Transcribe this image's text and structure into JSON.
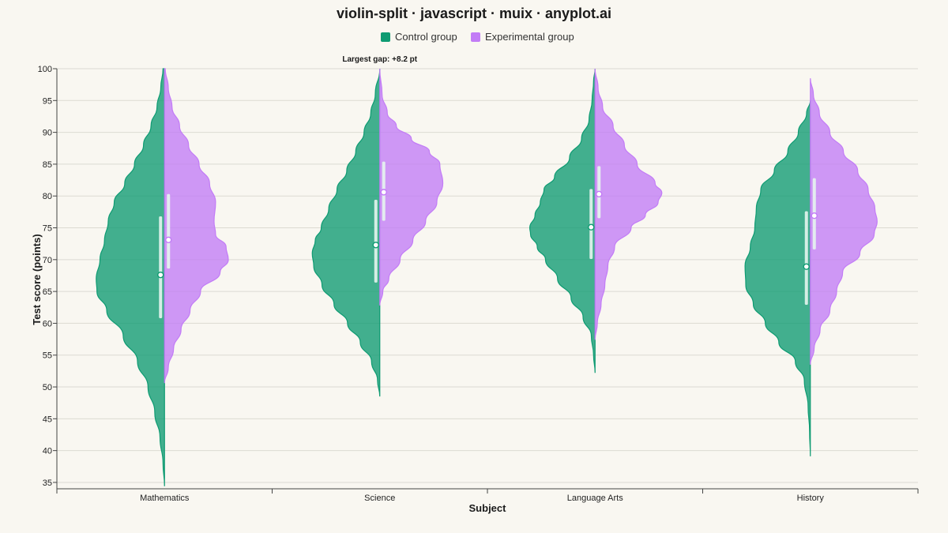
{
  "colors": {
    "control": "#0e9b72",
    "experimental": "#c27cf6",
    "grid": "#dcdad2",
    "axis": "#444444",
    "box": "#e6f5ee",
    "background": "#f9f7f1"
  },
  "chart_data": {
    "type": "violin-split",
    "title": "violin-split · javascript · muix · anyplot.ai",
    "xlabel": "Subject",
    "ylabel": "Test score (points)",
    "ylim": [
      34,
      100
    ],
    "yticks": [
      35,
      40,
      45,
      50,
      55,
      60,
      65,
      70,
      75,
      80,
      85,
      90,
      95,
      100
    ],
    "grid": true,
    "legend_position": "top-center",
    "categories": [
      "Mathematics",
      "Science",
      "Language Arts",
      "History"
    ],
    "series": [
      {
        "name": "Control group",
        "color": "#0e9b72",
        "side": "left",
        "distributions": [
          {
            "category": "Mathematics",
            "min": 34.4,
            "max": 100,
            "median": 67.6,
            "q1": 60.8,
            "q3": 76.8,
            "profile": [
              [
                34.4,
                0
              ],
              [
                38,
                0.02
              ],
              [
                42,
                0.06
              ],
              [
                46,
                0.13
              ],
              [
                50,
                0.22
              ],
              [
                54,
                0.36
              ],
              [
                58,
                0.55
              ],
              [
                62,
                0.77
              ],
              [
                65,
                0.9
              ],
              [
                67,
                0.91
              ],
              [
                70,
                0.86
              ],
              [
                73,
                0.8
              ],
              [
                76,
                0.75
              ],
              [
                79,
                0.67
              ],
              [
                82,
                0.53
              ],
              [
                85,
                0.4
              ],
              [
                88,
                0.28
              ],
              [
                91,
                0.18
              ],
              [
                94,
                0.1
              ],
              [
                97,
                0.05
              ],
              [
                100,
                0.02
              ]
            ]
          },
          {
            "category": "Science",
            "min": 48.5,
            "max": 100,
            "median": 72.3,
            "q1": 66.4,
            "q3": 79.4,
            "profile": [
              [
                48.5,
                0
              ],
              [
                51,
                0.03
              ],
              [
                54,
                0.11
              ],
              [
                57,
                0.26
              ],
              [
                60,
                0.43
              ],
              [
                63,
                0.61
              ],
              [
                66,
                0.77
              ],
              [
                69,
                0.88
              ],
              [
                71,
                0.9
              ],
              [
                73,
                0.86
              ],
              [
                75,
                0.78
              ],
              [
                78,
                0.68
              ],
              [
                81,
                0.57
              ],
              [
                84,
                0.44
              ],
              [
                87,
                0.32
              ],
              [
                90,
                0.21
              ],
              [
                93,
                0.12
              ],
              [
                96,
                0.06
              ],
              [
                100,
                0
              ]
            ]
          },
          {
            "category": "Language Arts",
            "min": 52.2,
            "max": 100,
            "median": 75.1,
            "q1": 70.1,
            "q3": 81.1,
            "profile": [
              [
                52.2,
                0
              ],
              [
                55,
                0.02
              ],
              [
                58,
                0.05
              ],
              [
                61,
                0.16
              ],
              [
                64,
                0.32
              ],
              [
                67,
                0.5
              ],
              [
                70,
                0.66
              ],
              [
                72,
                0.77
              ],
              [
                74,
                0.86
              ],
              [
                75,
                0.87
              ],
              [
                77,
                0.8
              ],
              [
                79,
                0.73
              ],
              [
                81,
                0.68
              ],
              [
                83,
                0.54
              ],
              [
                86,
                0.34
              ],
              [
                89,
                0.18
              ],
              [
                92,
                0.08
              ],
              [
                95,
                0.04
              ],
              [
                98,
                0.02
              ],
              [
                100,
                0
              ]
            ]
          },
          {
            "category": "History",
            "min": 39.1,
            "max": 95,
            "median": 68.9,
            "q1": 62.9,
            "q3": 77.6,
            "profile": [
              [
                39.1,
                0
              ],
              [
                43,
                0.01
              ],
              [
                47,
                0.03
              ],
              [
                51,
                0.08
              ],
              [
                54,
                0.2
              ],
              [
                57,
                0.42
              ],
              [
                60,
                0.6
              ],
              [
                63,
                0.76
              ],
              [
                66,
                0.86
              ],
              [
                69,
                0.87
              ],
              [
                72,
                0.8
              ],
              [
                75,
                0.74
              ],
              [
                78,
                0.72
              ],
              [
                81,
                0.66
              ],
              [
                84,
                0.48
              ],
              [
                87,
                0.3
              ],
              [
                90,
                0.16
              ],
              [
                93,
                0.05
              ],
              [
                95,
                0
              ]
            ]
          }
        ]
      },
      {
        "name": "Experimental group",
        "color": "#c27cf6",
        "side": "right",
        "distributions": [
          {
            "category": "Mathematics",
            "min": 50.6,
            "max": 100,
            "median": 73.1,
            "q1": 68.6,
            "q3": 80.3,
            "profile": [
              [
                50.6,
                0
              ],
              [
                53,
                0.05
              ],
              [
                56,
                0.12
              ],
              [
                59,
                0.22
              ],
              [
                62,
                0.34
              ],
              [
                65,
                0.48
              ],
              [
                68,
                0.74
              ],
              [
                70,
                0.85
              ],
              [
                72,
                0.82
              ],
              [
                74,
                0.68
              ],
              [
                76,
                0.66
              ],
              [
                79,
                0.68
              ],
              [
                82,
                0.6
              ],
              [
                85,
                0.46
              ],
              [
                88,
                0.32
              ],
              [
                91,
                0.2
              ],
              [
                94,
                0.1
              ],
              [
                97,
                0.05
              ],
              [
                100,
                0.01
              ]
            ]
          },
          {
            "category": "Science",
            "min": 62.8,
            "max": 100,
            "median": 80.6,
            "q1": 76.1,
            "q3": 85.4,
            "profile": [
              [
                62.8,
                0
              ],
              [
                65,
                0.04
              ],
              [
                67,
                0.12
              ],
              [
                70,
                0.27
              ],
              [
                73,
                0.44
              ],
              [
                76,
                0.61
              ],
              [
                79,
                0.76
              ],
              [
                82,
                0.84
              ],
              [
                85,
                0.8
              ],
              [
                87,
                0.66
              ],
              [
                89,
                0.42
              ],
              [
                91,
                0.22
              ],
              [
                93,
                0.1
              ],
              [
                96,
                0.03
              ],
              [
                100,
                0
              ]
            ]
          },
          {
            "category": "Language Arts",
            "min": 57.4,
            "max": 100,
            "median": 80.3,
            "q1": 76.5,
            "q3": 84.7,
            "profile": [
              [
                57.4,
                0
              ],
              [
                60,
                0.03
              ],
              [
                63,
                0.08
              ],
              [
                66,
                0.13
              ],
              [
                69,
                0.17
              ],
              [
                72,
                0.26
              ],
              [
                75,
                0.48
              ],
              [
                77,
                0.67
              ],
              [
                79,
                0.84
              ],
              [
                80.5,
                0.89
              ],
              [
                82,
                0.8
              ],
              [
                85,
                0.56
              ],
              [
                88,
                0.39
              ],
              [
                91,
                0.24
              ],
              [
                94,
                0.1
              ],
              [
                97,
                0.04
              ],
              [
                100,
                0
              ]
            ]
          },
          {
            "category": "History",
            "min": 53.5,
            "max": 98.5,
            "median": 76.9,
            "q1": 71.6,
            "q3": 82.8,
            "profile": [
              [
                53.5,
                0
              ],
              [
                56,
                0.05
              ],
              [
                59,
                0.13
              ],
              [
                62,
                0.26
              ],
              [
                65,
                0.35
              ],
              [
                68,
                0.43
              ],
              [
                71,
                0.66
              ],
              [
                74,
                0.85
              ],
              [
                76,
                0.89
              ],
              [
                78,
                0.86
              ],
              [
                81,
                0.77
              ],
              [
                84,
                0.63
              ],
              [
                87,
                0.44
              ],
              [
                90,
                0.26
              ],
              [
                93,
                0.12
              ],
              [
                96,
                0.04
              ],
              [
                98.5,
                0
              ]
            ]
          }
        ]
      }
    ],
    "annotation": {
      "text": "Largest gap: +8.2 pt",
      "category": "Science"
    }
  }
}
